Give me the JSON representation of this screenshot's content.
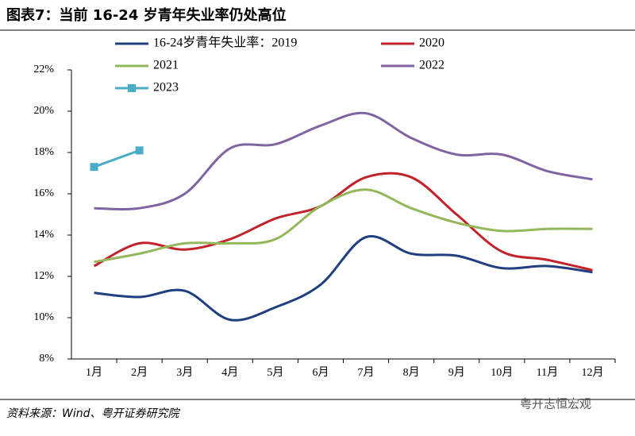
{
  "title": "图表7：当前 16-24 岁青年失业率仍处高位",
  "source": "资料来源：Wind、粤开证券研究院",
  "watermark": "粤开志恒宏观",
  "chart_data": {
    "type": "line",
    "categories": [
      "1月",
      "2月",
      "3月",
      "4月",
      "5月",
      "6月",
      "7月",
      "8月",
      "9月",
      "10月",
      "11月",
      "12月"
    ],
    "series": [
      {
        "name": "16-24岁青年失业率：2019",
        "color": "#1f3f7f",
        "values": [
          11.2,
          11.0,
          11.3,
          9.9,
          10.5,
          11.6,
          13.9,
          13.1,
          13.0,
          12.4,
          12.5,
          12.2
        ]
      },
      {
        "name": "2020",
        "color": "#c0232a",
        "values": [
          12.5,
          13.6,
          13.3,
          13.8,
          14.8,
          15.4,
          16.8,
          16.8,
          15.0,
          13.2,
          12.8,
          12.3
        ]
      },
      {
        "name": "2021",
        "color": "#93b75a",
        "values": [
          12.7,
          13.1,
          13.6,
          13.6,
          13.8,
          15.4,
          16.2,
          15.3,
          14.6,
          14.2,
          14.3,
          14.3
        ]
      },
      {
        "name": "2022",
        "color": "#8064a2",
        "values": [
          15.3,
          15.3,
          16.0,
          18.2,
          18.4,
          19.3,
          19.9,
          18.7,
          17.9,
          17.9,
          17.1,
          16.7
        ]
      },
      {
        "name": "2023",
        "color": "#4bacc6",
        "marker": "square",
        "values": [
          17.3,
          18.1,
          null,
          null,
          null,
          null,
          null,
          null,
          null,
          null,
          null,
          null
        ]
      }
    ],
    "ylim": [
      8,
      22
    ],
    "yticks": [
      {
        "value": 8,
        "label": "8%"
      },
      {
        "value": 10,
        "label": "10%"
      },
      {
        "value": 12,
        "label": "12%"
      },
      {
        "value": 14,
        "label": "14%"
      },
      {
        "value": 16,
        "label": "16%"
      },
      {
        "value": 18,
        "label": "18%"
      },
      {
        "value": 20,
        "label": "20%"
      },
      {
        "value": 22,
        "label": "22%"
      }
    ]
  }
}
